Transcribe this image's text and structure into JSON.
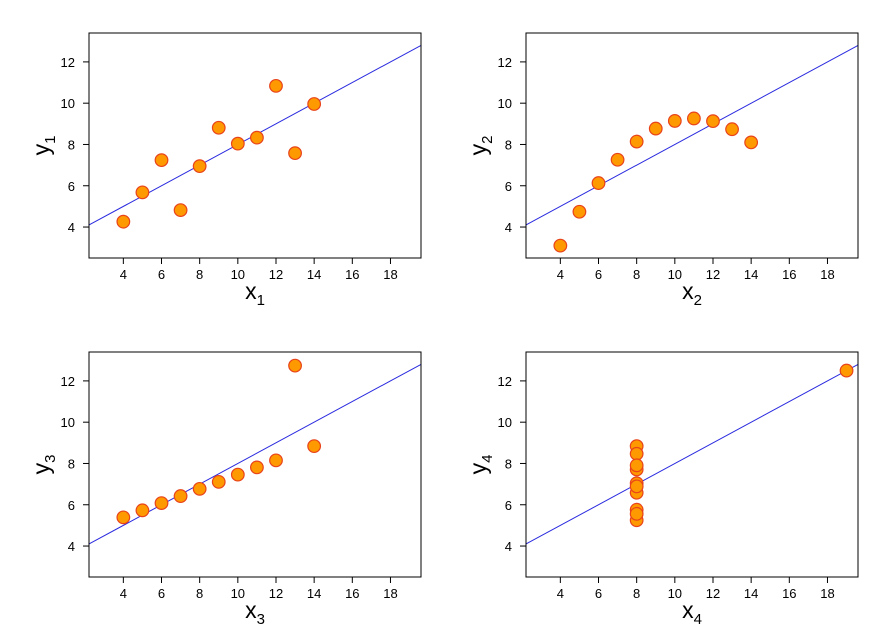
{
  "colors": {
    "point_fill": "#ff9900",
    "point_stroke": "#e8431a",
    "fit_line": "#2a2adf",
    "frame": "#000000"
  },
  "chart_data": [
    {
      "type": "scatter",
      "title": "",
      "xlabel": "x1",
      "ylabel": "y1",
      "xlabel_base": "x",
      "xlabel_sub": "1",
      "ylabel_base": "y",
      "ylabel_sub": "1",
      "xlim": [
        2.2,
        19.6
      ],
      "ylim": [
        2.5,
        13.4
      ],
      "x_ticks": [
        4,
        6,
        8,
        10,
        12,
        14,
        16,
        18
      ],
      "y_ticks": [
        4,
        6,
        8,
        10,
        12
      ],
      "grid": false,
      "points": [
        [
          10,
          8.04
        ],
        [
          8,
          6.95
        ],
        [
          13,
          7.58
        ],
        [
          9,
          8.81
        ],
        [
          11,
          8.33
        ],
        [
          14,
          9.96
        ],
        [
          6,
          7.24
        ],
        [
          4,
          4.26
        ],
        [
          12,
          10.84
        ],
        [
          7,
          4.82
        ],
        [
          5,
          5.68
        ]
      ],
      "fit": {
        "intercept": 3.0,
        "slope": 0.5
      }
    },
    {
      "type": "scatter",
      "title": "",
      "xlabel": "x2",
      "ylabel": "y2",
      "xlabel_base": "x",
      "xlabel_sub": "2",
      "ylabel_base": "y",
      "ylabel_sub": "2",
      "xlim": [
        2.2,
        19.6
      ],
      "ylim": [
        2.5,
        13.4
      ],
      "x_ticks": [
        4,
        6,
        8,
        10,
        12,
        14,
        16,
        18
      ],
      "y_ticks": [
        4,
        6,
        8,
        10,
        12
      ],
      "grid": false,
      "points": [
        [
          10,
          9.14
        ],
        [
          8,
          8.14
        ],
        [
          13,
          8.74
        ],
        [
          9,
          8.77
        ],
        [
          11,
          9.26
        ],
        [
          14,
          8.1
        ],
        [
          6,
          6.13
        ],
        [
          4,
          3.1
        ],
        [
          12,
          9.13
        ],
        [
          7,
          7.26
        ],
        [
          5,
          4.74
        ]
      ],
      "fit": {
        "intercept": 3.0,
        "slope": 0.5
      }
    },
    {
      "type": "scatter",
      "title": "",
      "xlabel": "x3",
      "ylabel": "y3",
      "xlabel_base": "x",
      "xlabel_sub": "3",
      "ylabel_base": "y",
      "ylabel_sub": "3",
      "xlim": [
        2.2,
        19.6
      ],
      "ylim": [
        2.5,
        13.4
      ],
      "x_ticks": [
        4,
        6,
        8,
        10,
        12,
        14,
        16,
        18
      ],
      "y_ticks": [
        4,
        6,
        8,
        10,
        12
      ],
      "grid": false,
      "points": [
        [
          10,
          7.46
        ],
        [
          8,
          6.77
        ],
        [
          13,
          12.74
        ],
        [
          9,
          7.11
        ],
        [
          11,
          7.81
        ],
        [
          14,
          8.84
        ],
        [
          6,
          6.08
        ],
        [
          4,
          5.39
        ],
        [
          12,
          8.15
        ],
        [
          7,
          6.42
        ],
        [
          5,
          5.73
        ]
      ],
      "fit": {
        "intercept": 3.0,
        "slope": 0.5
      }
    },
    {
      "type": "scatter",
      "title": "",
      "xlabel": "x4",
      "ylabel": "y4",
      "xlabel_base": "x",
      "xlabel_sub": "4",
      "ylabel_base": "y",
      "ylabel_sub": "4",
      "xlim": [
        2.2,
        19.6
      ],
      "ylim": [
        2.5,
        13.4
      ],
      "x_ticks": [
        4,
        6,
        8,
        10,
        12,
        14,
        16,
        18
      ],
      "y_ticks": [
        4,
        6,
        8,
        10,
        12
      ],
      "grid": false,
      "points": [
        [
          8,
          6.58
        ],
        [
          8,
          5.76
        ],
        [
          8,
          7.71
        ],
        [
          8,
          8.84
        ],
        [
          8,
          8.47
        ],
        [
          8,
          7.04
        ],
        [
          8,
          5.25
        ],
        [
          19,
          12.5
        ],
        [
          8,
          5.56
        ],
        [
          8,
          7.91
        ],
        [
          8,
          6.89
        ]
      ],
      "fit": {
        "intercept": 3.0,
        "slope": 0.5
      }
    }
  ]
}
